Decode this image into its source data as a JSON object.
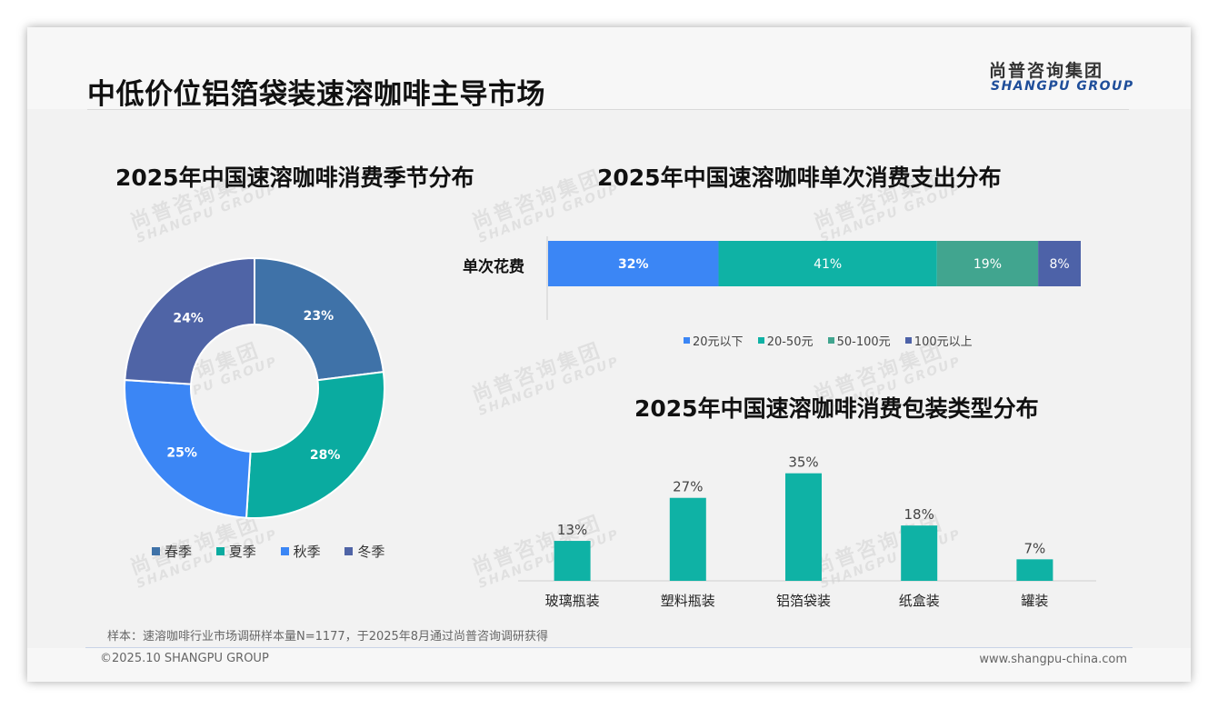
{
  "header": {
    "title": "中低价位铝箔袋装速溶咖啡主导市场",
    "logo_cn": "尚普咨询集团",
    "logo_en": "SHANGPU GROUP"
  },
  "watermark": {
    "cn": "尚普咨询集团",
    "en": "SHANGPU GROUP"
  },
  "footer": {
    "note": "样本：速溶咖啡行业市场调研样本量N=1177，于2025年8月通过尚普咨询调研获得",
    "copyright": "©2025.10 SHANGPU GROUP",
    "website": "www.shangpu-china.com"
  },
  "colors": {
    "spring": "#3f72a8",
    "summer": "#0aaba0",
    "autumn": "#3b86f5",
    "winter": "#4f64a6",
    "blue": "#3b86f5",
    "teal": "#0fb2a5",
    "green": "#41a58f",
    "indigo": "#4d62a8"
  },
  "chart_data": [
    {
      "type": "pie",
      "title": "2025年中国速溶咖啡消费季节分布",
      "categories": [
        "春季",
        "夏季",
        "秋季",
        "冬季"
      ],
      "values": [
        23,
        28,
        25,
        24
      ],
      "labels": [
        "23%",
        "28%",
        "25%",
        "24%"
      ],
      "colors": [
        "#3f72a8",
        "#0aaba0",
        "#3b86f5",
        "#4f64a6"
      ],
      "legend": "bottom"
    },
    {
      "type": "bar",
      "orientation": "horizontal-stacked",
      "title": "2025年中国速溶咖啡单次消费支出分布",
      "categories": [
        "单次花费"
      ],
      "series": [
        {
          "name": "20元以下",
          "values": [
            32
          ],
          "label": "32%",
          "color": "#3b86f5"
        },
        {
          "name": "20-50元",
          "values": [
            41
          ],
          "label": "41%",
          "color": "#0fb2a5"
        },
        {
          "name": "50-100元",
          "values": [
            19
          ],
          "label": "19%",
          "color": "#41a58f"
        },
        {
          "name": "100元以上",
          "values": [
            8
          ],
          "label": "8%",
          "color": "#4d62a8"
        }
      ],
      "legend": "bottom"
    },
    {
      "type": "bar",
      "title": "2025年中国速溶咖啡消费包装类型分布",
      "categories": [
        "玻璃瓶装",
        "塑料瓶装",
        "铝箔袋装",
        "纸盒装",
        "罐装"
      ],
      "values": [
        13,
        27,
        35,
        18,
        7
      ],
      "labels": [
        "13%",
        "27%",
        "35%",
        "18%",
        "7%"
      ],
      "color": "#0fb2a5",
      "ylim": [
        0,
        40
      ]
    }
  ]
}
